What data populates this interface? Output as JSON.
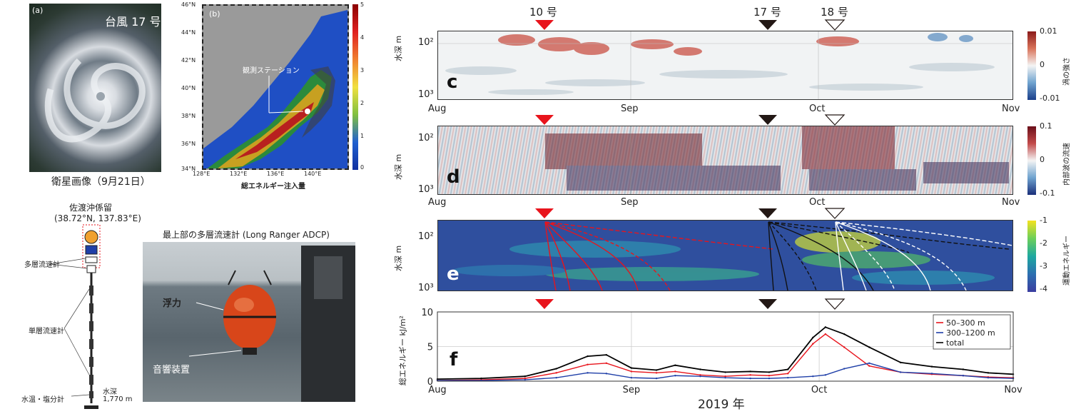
{
  "panel_a": {
    "label": "(a)",
    "title": "台風 17 号",
    "caption": "衛星画像（9月21日）"
  },
  "panel_b": {
    "label": "(b)",
    "station_label": "観測ステーション",
    "xlabel": "総エネルギー注入量",
    "lat_ticks": [
      "46°N",
      "44°N",
      "42°N",
      "40°N",
      "38°N",
      "36°N",
      "34°N"
    ],
    "lon_ticks": [
      "128°E",
      "132°E",
      "136°E",
      "140°E"
    ],
    "colorbar_ticks": [
      "5",
      "4",
      "3",
      "2",
      "1",
      "0"
    ]
  },
  "mooring": {
    "title": "佐渡沖係留",
    "coords": "(38.72°N, 137.83°E)",
    "multi_current": "多層流速計",
    "single_current": "単層流速計",
    "temp_salinity": "水温・塩分計",
    "depth_label": "水深",
    "depth_value": "1,770 m"
  },
  "photo": {
    "title": "最上部の多層流速計 (Long Ranger ADCP)",
    "buoyancy": "浮力",
    "acoustic": "音響装置"
  },
  "typhoons": {
    "t10": "10 号",
    "t17": "17 号",
    "t18": "18 号"
  },
  "common": {
    "ylabel_depth": "水深 m",
    "ytick_100": "10²",
    "ytick_1000": "10³",
    "months": [
      "Aug",
      "Sep",
      "Oct",
      "Nov"
    ],
    "year_label": "2019 年"
  },
  "panel_c": {
    "label": "c",
    "cbar_title": "渦の強さ",
    "cbar_ticks": [
      "0.01",
      "0",
      "-0.01"
    ]
  },
  "panel_d": {
    "label": "d",
    "cbar_title": "内部波の流速",
    "cbar_ticks": [
      "0.1",
      "0",
      "-0.1"
    ]
  },
  "panel_e": {
    "label": "e",
    "cbar_title": "運動エネルギー",
    "cbar_ticks": [
      "-1",
      "-2",
      "-3",
      "-4"
    ]
  },
  "panel_f": {
    "label": "f",
    "ylabel": "総エネルギー kJ/m²",
    "yticks": [
      "10",
      "5",
      "0"
    ],
    "legend": [
      "50–300 m",
      "300–1200 m",
      "total"
    ]
  },
  "colors": {
    "red_marker": "#e8141c",
    "black_marker": "#231815",
    "series_shallow": "#e8141c",
    "series_deep": "#1f3fa8",
    "series_total": "#000000"
  },
  "chart_data": {
    "type": "line",
    "x": [
      "08-01",
      "08-08",
      "08-15",
      "08-20",
      "08-25",
      "08-28",
      "09-01",
      "09-05",
      "09-08",
      "09-12",
      "09-16",
      "09-20",
      "09-23",
      "09-26",
      "09-30",
      "10-02",
      "10-05",
      "10-09",
      "10-14",
      "10-19",
      "10-24",
      "10-28",
      "11-01"
    ],
    "series": [
      {
        "name": "50–300 m",
        "values": [
          0.1,
          0.2,
          0.4,
          1.2,
          2.4,
          2.6,
          1.4,
          1.2,
          1.4,
          0.9,
          0.7,
          0.9,
          0.8,
          1.1,
          5.4,
          6.8,
          4.9,
          2.2,
          1.3,
          1.0,
          0.8,
          0.6,
          0.5
        ]
      },
      {
        "name": "300–1200 m",
        "values": [
          0.1,
          0.1,
          0.2,
          0.5,
          1.2,
          1.1,
          0.5,
          0.4,
          0.8,
          0.7,
          0.5,
          0.4,
          0.4,
          0.5,
          0.7,
          0.9,
          1.8,
          2.6,
          1.3,
          1.1,
          0.8,
          0.5,
          0.4
        ]
      },
      {
        "name": "total",
        "values": [
          0.3,
          0.4,
          0.7,
          1.8,
          3.6,
          3.8,
          1.9,
          1.6,
          2.3,
          1.7,
          1.3,
          1.4,
          1.3,
          1.7,
          6.3,
          7.8,
          6.8,
          4.9,
          2.7,
          2.1,
          1.7,
          1.2,
          1.0
        ]
      }
    ],
    "ylabel": "総エネルギー kJ/m²",
    "ylim": [
      0,
      10
    ],
    "xlabel": "2019 年",
    "legend_position": "top-right",
    "grid": true
  }
}
